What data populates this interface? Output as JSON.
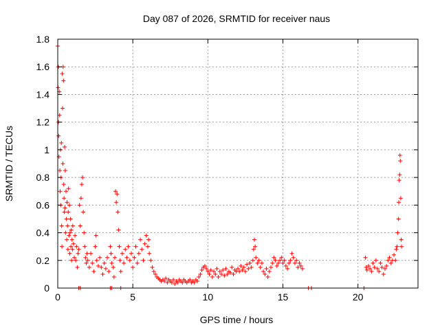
{
  "chart_data": {
    "type": "scatter",
    "title": "Day 087 of 2026, SRMTID for receiver naus",
    "xlabel": "GPS time / hours",
    "ylabel": "SRMTID / TECUs",
    "xlim": [
      0,
      24
    ],
    "ylim": [
      0,
      1.8
    ],
    "x_ticks": [
      0,
      5,
      10,
      15,
      20
    ],
    "y_ticks": [
      0,
      0.2,
      0.4,
      0.6,
      0.8,
      1,
      1.2,
      1.4,
      1.6,
      1.8
    ],
    "grid": true,
    "marker": "+",
    "series_color": "#ff0000",
    "series": [
      {
        "values": [
          [
            0.0,
            1.75
          ],
          [
            0.02,
            1.45
          ],
          [
            0.04,
            1.6
          ],
          [
            0.05,
            1.2
          ],
          [
            0.06,
            1.1
          ],
          [
            0.08,
            0.95
          ],
          [
            0.1,
            1.42
          ],
          [
            0.12,
            1.25
          ],
          [
            0.14,
            0.85
          ],
          [
            0.16,
            0.7
          ],
          [
            0.18,
            1.0
          ],
          [
            0.2,
            0.6
          ],
          [
            0.22,
            0.8
          ],
          [
            0.24,
            1.05
          ],
          [
            0.26,
            0.45
          ],
          [
            0.28,
            0.3
          ],
          [
            0.3,
            1.55
          ],
          [
            0.32,
            1.3
          ],
          [
            0.34,
            0.9
          ],
          [
            0.36,
            1.6
          ],
          [
            0.38,
            1.5
          ],
          [
            0.4,
            0.75
          ],
          [
            0.42,
            0.65
          ],
          [
            0.44,
            0.55
          ],
          [
            0.46,
            1.02
          ],
          [
            0.48,
            0.58
          ],
          [
            0.5,
            0.85
          ],
          [
            0.52,
            0.4
          ],
          [
            0.55,
            0.7
          ],
          [
            0.58,
            0.5
          ],
          [
            0.6,
            0.35
          ],
          [
            0.62,
            0.62
          ],
          [
            0.65,
            0.45
          ],
          [
            0.68,
            0.28
          ],
          [
            0.7,
            0.55
          ],
          [
            0.72,
            0.72
          ],
          [
            0.75,
            0.38
          ],
          [
            0.78,
            0.6
          ],
          [
            0.8,
            0.25
          ],
          [
            0.82,
            0.4
          ],
          [
            0.85,
            0.5
          ],
          [
            0.88,
            0.3
          ],
          [
            0.9,
            0.42
          ],
          [
            0.92,
            0.2
          ],
          [
            0.95,
            0.35
          ],
          [
            0.98,
            0.28
          ],
          [
            1.0,
            0.45
          ],
          [
            1.05,
            0.32
          ],
          [
            1.1,
            0.22
          ],
          [
            1.15,
            0.38
          ],
          [
            1.2,
            0.2
          ],
          [
            1.25,
            0.3
          ],
          [
            1.3,
            0.15
          ],
          [
            1.35,
            0.25
          ],
          [
            1.4,
            0.28
          ],
          [
            1.45,
            0.6
          ],
          [
            1.5,
            0.45
          ],
          [
            1.55,
            0.65
          ],
          [
            1.6,
            0.75
          ],
          [
            1.65,
            0.8
          ],
          [
            1.7,
            0.55
          ],
          [
            1.75,
            0.4
          ],
          [
            1.8,
            0.3
          ],
          [
            1.85,
            0.22
          ],
          [
            1.9,
            0.18
          ],
          [
            1.95,
            0.25
          ],
          [
            2.0,
            0.2
          ],
          [
            2.1,
            0.15
          ],
          [
            2.2,
            0.25
          ],
          [
            2.3,
            0.18
          ],
          [
            2.4,
            0.12
          ],
          [
            2.5,
            0.3
          ],
          [
            2.55,
            0.38
          ],
          [
            2.6,
            0.2
          ],
          [
            2.7,
            0.16
          ],
          [
            2.8,
            0.22
          ],
          [
            2.9,
            0.15
          ],
          [
            3.0,
            0.1
          ],
          [
            3.1,
            0.18
          ],
          [
            3.2,
            0.14
          ],
          [
            3.3,
            0.22
          ],
          [
            3.4,
            0.12
          ],
          [
            3.5,
            0.3
          ],
          [
            3.55,
            0.25
          ],
          [
            3.6,
            0.18
          ],
          [
            3.7,
            0.15
          ],
          [
            3.75,
            0.08
          ],
          [
            3.8,
            0.22
          ],
          [
            3.85,
            0.7
          ],
          [
            3.9,
            0.62
          ],
          [
            3.95,
            0.68
          ],
          [
            4.0,
            0.55
          ],
          [
            4.05,
            0.42
          ],
          [
            4.1,
            0.3
          ],
          [
            4.15,
            0.2
          ],
          [
            4.2,
            0.12
          ],
          [
            4.3,
            0.25
          ],
          [
            4.4,
            0.18
          ],
          [
            4.5,
            0.28
          ],
          [
            4.6,
            0.22
          ],
          [
            4.7,
            0.3
          ],
          [
            4.8,
            0.2
          ],
          [
            4.9,
            0.25
          ],
          [
            5.0,
            0.15
          ],
          [
            5.1,
            0.22
          ],
          [
            5.2,
            0.3
          ],
          [
            5.3,
            0.18
          ],
          [
            5.4,
            0.25
          ],
          [
            5.5,
            0.35
          ],
          [
            5.6,
            0.28
          ],
          [
            5.7,
            0.2
          ],
          [
            5.8,
            0.32
          ],
          [
            5.9,
            0.38
          ],
          [
            6.0,
            0.3
          ],
          [
            6.05,
            0.35
          ],
          [
            6.1,
            0.25
          ],
          [
            6.2,
            0.2
          ],
          [
            6.3,
            0.15
          ],
          [
            6.4,
            0.12
          ],
          [
            6.5,
            0.1
          ],
          [
            6.6,
            0.08
          ],
          [
            6.7,
            0.07
          ],
          [
            6.8,
            0.06
          ],
          [
            6.9,
            0.05
          ],
          [
            7.0,
            0.06
          ],
          [
            7.1,
            0.05
          ],
          [
            7.2,
            0.07
          ],
          [
            7.3,
            0.04
          ],
          [
            7.4,
            0.06
          ],
          [
            7.5,
            0.05
          ],
          [
            7.6,
            0.04
          ],
          [
            7.7,
            0.06
          ],
          [
            7.8,
            0.03
          ],
          [
            7.9,
            0.05
          ],
          [
            8.0,
            0.04
          ],
          [
            8.1,
            0.06
          ],
          [
            8.2,
            0.05
          ],
          [
            8.3,
            0.04
          ],
          [
            8.4,
            0.06
          ],
          [
            8.5,
            0.05
          ],
          [
            8.6,
            0.04
          ],
          [
            8.7,
            0.05
          ],
          [
            8.8,
            0.06
          ],
          [
            8.9,
            0.04
          ],
          [
            9.0,
            0.05
          ],
          [
            9.1,
            0.04
          ],
          [
            9.2,
            0.06
          ],
          [
            9.3,
            0.05
          ],
          [
            9.4,
            0.08
          ],
          [
            9.5,
            0.1
          ],
          [
            9.6,
            0.13
          ],
          [
            9.7,
            0.15
          ],
          [
            9.8,
            0.16
          ],
          [
            9.9,
            0.14
          ],
          [
            10.0,
            0.12
          ],
          [
            10.1,
            0.1
          ],
          [
            10.2,
            0.13
          ],
          [
            10.3,
            0.08
          ],
          [
            10.4,
            0.12
          ],
          [
            10.5,
            0.1
          ],
          [
            10.6,
            0.14
          ],
          [
            10.7,
            0.08
          ],
          [
            10.8,
            0.12
          ],
          [
            10.9,
            0.1
          ],
          [
            11.0,
            0.13
          ],
          [
            11.1,
            0.09
          ],
          [
            11.2,
            0.14
          ],
          [
            11.3,
            0.1
          ],
          [
            11.4,
            0.12
          ],
          [
            11.5,
            0.11
          ],
          [
            11.6,
            0.15
          ],
          [
            11.7,
            0.1
          ],
          [
            11.8,
            0.13
          ],
          [
            11.9,
            0.12
          ],
          [
            12.0,
            0.14
          ],
          [
            12.1,
            0.12
          ],
          [
            12.2,
            0.16
          ],
          [
            12.3,
            0.13
          ],
          [
            12.4,
            0.15
          ],
          [
            12.5,
            0.12
          ],
          [
            12.6,
            0.17
          ],
          [
            12.7,
            0.14
          ],
          [
            12.8,
            0.18
          ],
          [
            12.9,
            0.15
          ],
          [
            13.0,
            0.2
          ],
          [
            13.05,
            0.28
          ],
          [
            13.1,
            0.35
          ],
          [
            13.15,
            0.3
          ],
          [
            13.2,
            0.22
          ],
          [
            13.3,
            0.18
          ],
          [
            13.4,
            0.2
          ],
          [
            13.5,
            0.15
          ],
          [
            13.6,
            0.18
          ],
          [
            13.7,
            0.12
          ],
          [
            13.8,
            0.1
          ],
          [
            13.9,
            0.14
          ],
          [
            14.0,
            0.08
          ],
          [
            14.1,
            0.12
          ],
          [
            14.2,
            0.15
          ],
          [
            14.3,
            0.18
          ],
          [
            14.4,
            0.22
          ],
          [
            14.5,
            0.2
          ],
          [
            14.6,
            0.16
          ],
          [
            14.7,
            0.18
          ],
          [
            14.8,
            0.2
          ],
          [
            14.9,
            0.22
          ],
          [
            15.0,
            0.18
          ],
          [
            15.1,
            0.2
          ],
          [
            15.2,
            0.16
          ],
          [
            15.3,
            0.14
          ],
          [
            15.4,
            0.18
          ],
          [
            15.5,
            0.2
          ],
          [
            15.6,
            0.25
          ],
          [
            15.7,
            0.22
          ],
          [
            15.8,
            0.18
          ],
          [
            15.9,
            0.2
          ],
          [
            16.0,
            0.15
          ],
          [
            16.1,
            0.18
          ],
          [
            16.2,
            0.16
          ],
          [
            16.3,
            0.14
          ],
          [
            20.5,
            0.22
          ],
          [
            20.55,
            0.15
          ],
          [
            20.6,
            0.13
          ],
          [
            20.7,
            0.16
          ],
          [
            20.8,
            0.14
          ],
          [
            20.9,
            0.12
          ],
          [
            21.0,
            0.18
          ],
          [
            21.1,
            0.15
          ],
          [
            21.2,
            0.2
          ],
          [
            21.3,
            0.14
          ],
          [
            21.4,
            0.12
          ],
          [
            21.5,
            0.18
          ],
          [
            21.6,
            0.15
          ],
          [
            21.7,
            0.1
          ],
          [
            21.8,
            0.14
          ],
          [
            21.9,
            0.16
          ],
          [
            22.0,
            0.2
          ],
          [
            22.1,
            0.22
          ],
          [
            22.2,
            0.18
          ],
          [
            22.3,
            0.2
          ],
          [
            22.4,
            0.24
          ],
          [
            22.5,
            0.2
          ],
          [
            22.55,
            0.28
          ],
          [
            22.6,
            0.3
          ],
          [
            22.65,
            0.4
          ],
          [
            22.7,
            0.5
          ],
          [
            22.72,
            0.62
          ],
          [
            22.75,
            0.78
          ],
          [
            22.78,
            0.82
          ],
          [
            22.8,
            0.96
          ],
          [
            22.82,
            0.92
          ],
          [
            22.85,
            0.65
          ],
          [
            22.88,
            0.35
          ],
          [
            22.9,
            0.3
          ],
          [
            1.4,
            0.0
          ],
          [
            1.5,
            0.0
          ],
          [
            3.5,
            0.0
          ],
          [
            3.6,
            0.0
          ],
          [
            4.2,
            0.0
          ],
          [
            16.7,
            0.0
          ],
          [
            16.9,
            0.0
          ],
          [
            20.4,
            0.0
          ]
        ]
      }
    ]
  }
}
